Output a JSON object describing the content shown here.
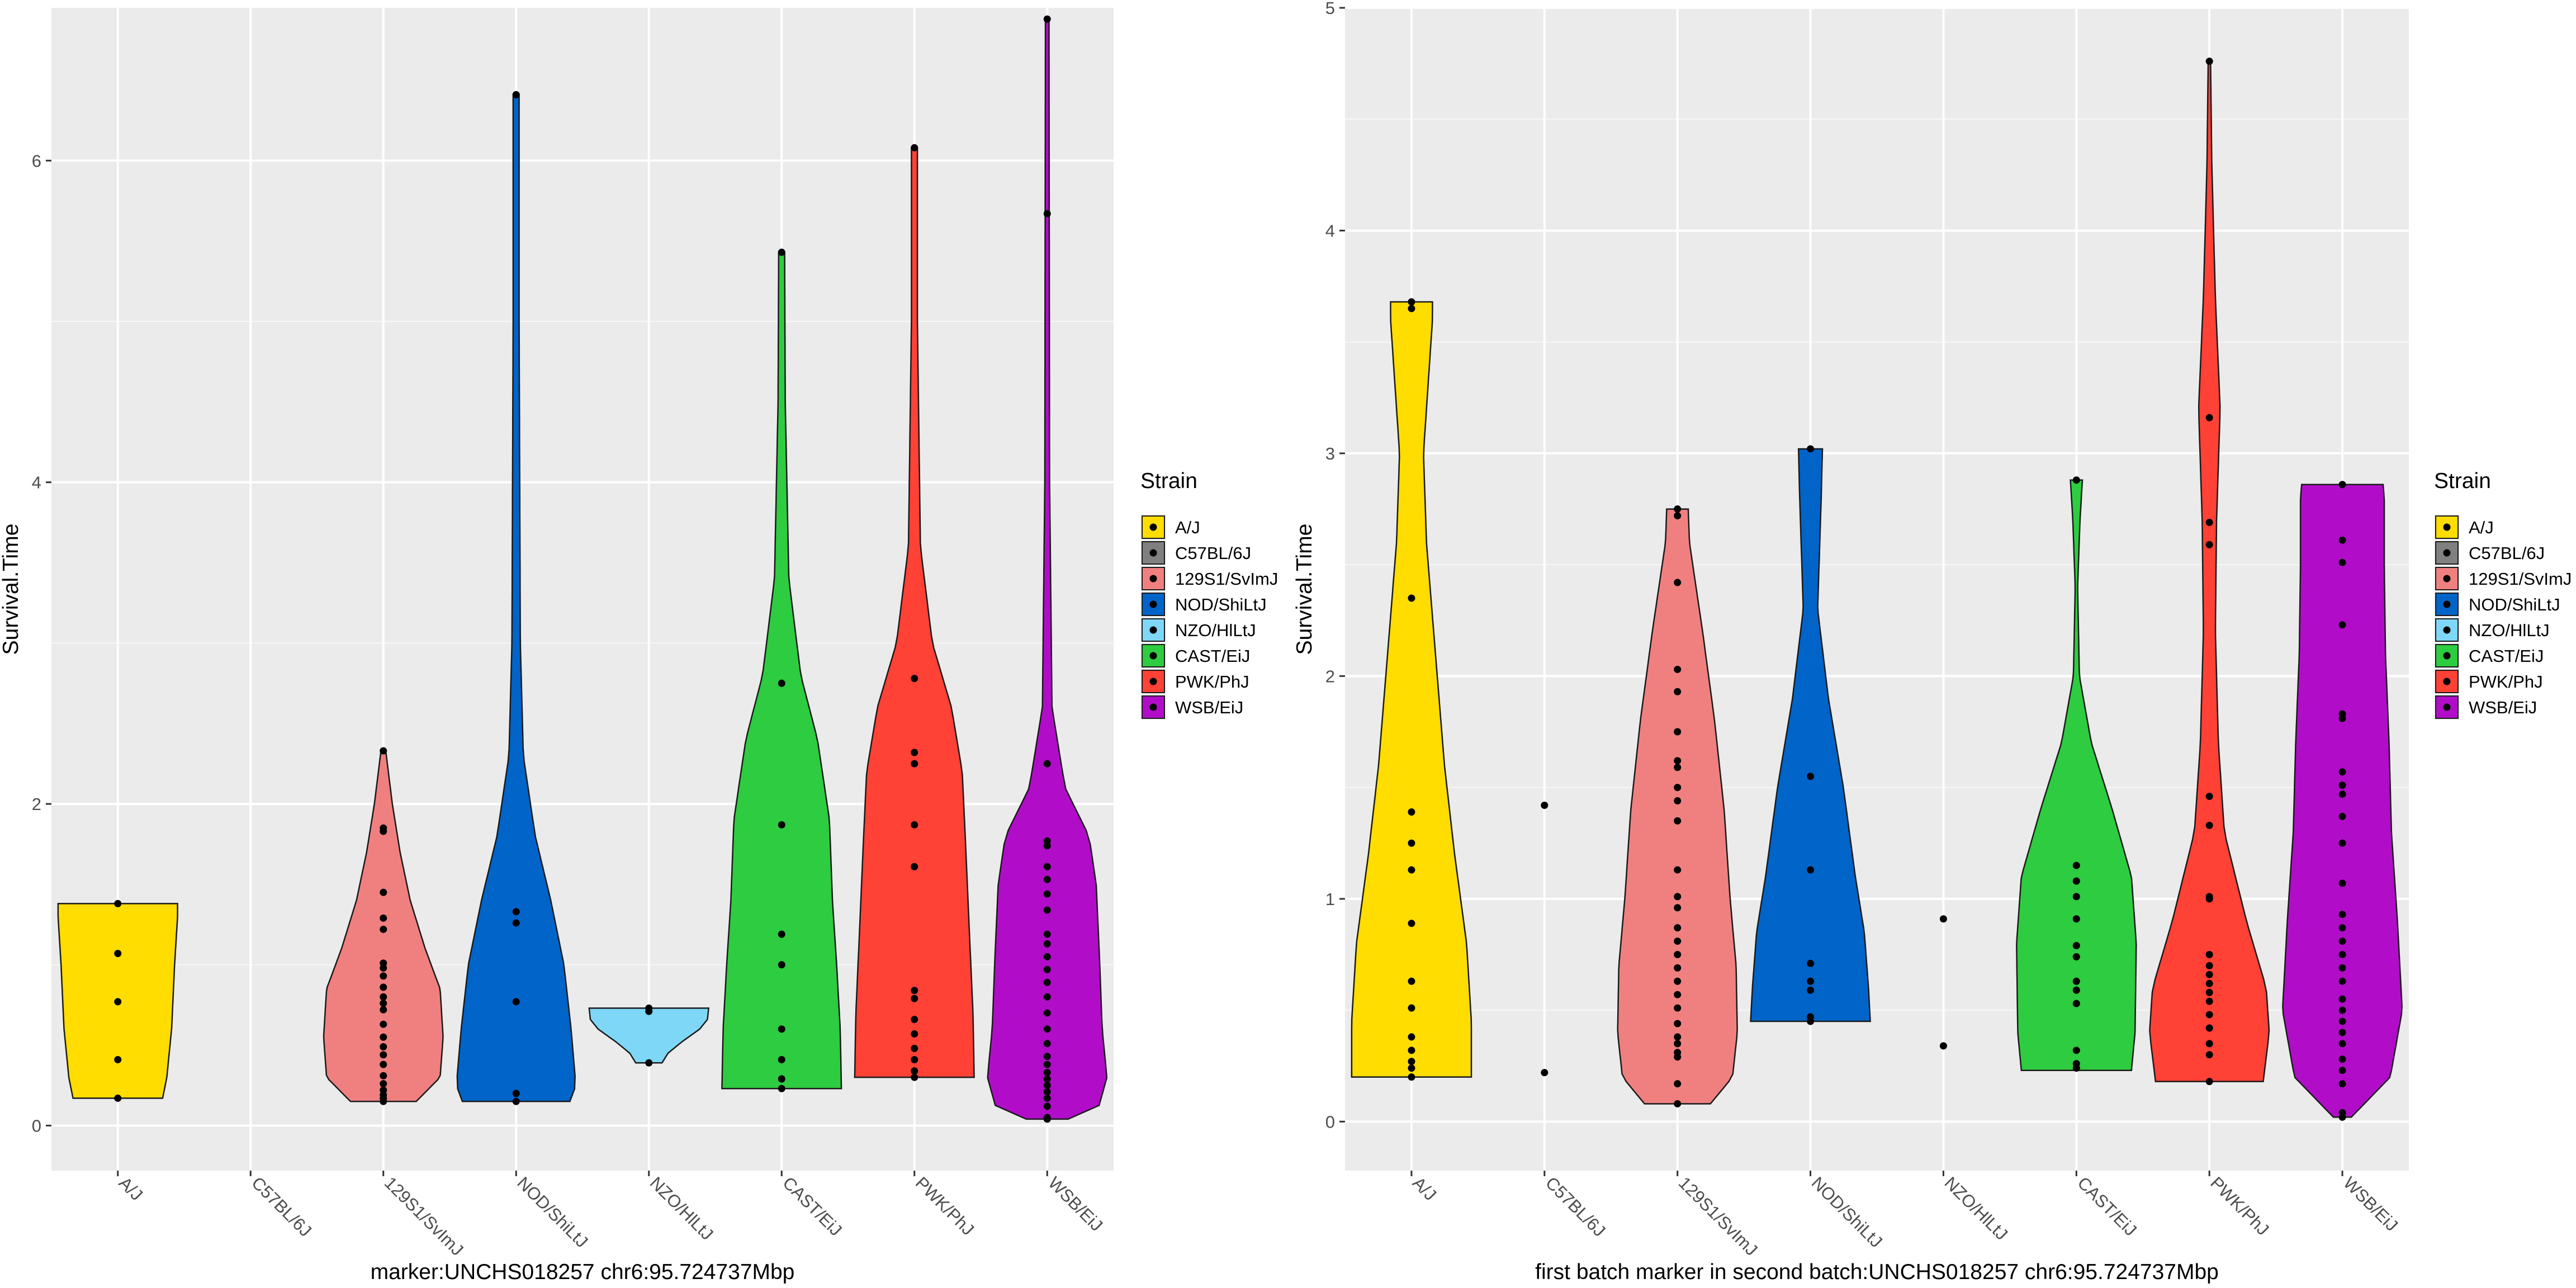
{
  "legend_title": "Strain",
  "colors": {
    "A/J": "#FFDD00",
    "C57BL/6J": "#808080",
    "129S1/SvImJ": "#F08080",
    "NOD/ShiLtJ": "#0064C9",
    "NZO/HlLtJ": "#7FD7F7",
    "CAST/EiJ": "#2ECC40",
    "PWK/PhJ": "#FF4136",
    "WSB/EiJ": "#B10DC9"
  },
  "chart_data": [
    {
      "type": "violin",
      "xlabel": "marker:UNCHS018257 chr6:95.724737Mbp",
      "ylabel": "Survival.Time",
      "categories": [
        "A/J",
        "C57BL/6J",
        "129S1/SvImJ",
        "NOD/ShiLtJ",
        "NZO/HlLtJ",
        "CAST/EiJ",
        "PWK/PhJ",
        "WSB/EiJ"
      ],
      "ylim": [
        -0.28,
        6.95
      ],
      "yticks": [
        0,
        2,
        4,
        6
      ],
      "grid": true,
      "legend_position": "right",
      "series": [
        {
          "name": "A/J",
          "range": [
            0.17,
            1.38
          ],
          "points": [
            1.38,
            1.07,
            0.77,
            0.41,
            0.17
          ],
          "shape": [
            [
              0.17,
              0.75
            ],
            [
              0.3,
              0.82
            ],
            [
              0.6,
              0.9
            ],
            [
              1.0,
              0.95
            ],
            [
              1.3,
              1.0
            ],
            [
              1.38,
              1.0
            ]
          ]
        },
        {
          "name": "C57BL/6J",
          "range": null,
          "points": [],
          "shape": []
        },
        {
          "name": "129S1/SvImJ",
          "range": [
            0.15,
            2.33
          ],
          "points": [
            2.33,
            1.85,
            1.83,
            1.45,
            1.29,
            1.22,
            1.01,
            0.98,
            0.93,
            0.86,
            0.8,
            0.76,
            0.72,
            0.63,
            0.55,
            0.49,
            0.44,
            0.38,
            0.31,
            0.26,
            0.22,
            0.19,
            0.17,
            0.15
          ],
          "shape": [
            [
              0.15,
              0.55
            ],
            [
              0.3,
              0.95
            ],
            [
              0.55,
              1.0
            ],
            [
              0.85,
              0.95
            ],
            [
              1.1,
              0.7
            ],
            [
              1.4,
              0.45
            ],
            [
              1.7,
              0.28
            ],
            [
              2.0,
              0.15
            ],
            [
              2.33,
              0.04
            ]
          ]
        },
        {
          "name": "NOD/ShiLtJ",
          "range": [
            0.15,
            6.41
          ],
          "points": [
            6.41,
            1.33,
            1.26,
            0.77,
            0.2,
            0.15
          ],
          "shape": [
            [
              0.15,
              0.9
            ],
            [
              0.25,
              1.0
            ],
            [
              0.6,
              0.92
            ],
            [
              1.0,
              0.8
            ],
            [
              1.4,
              0.58
            ],
            [
              1.8,
              0.32
            ],
            [
              2.3,
              0.12
            ],
            [
              3.0,
              0.07
            ],
            [
              5.0,
              0.05
            ],
            [
              6.41,
              0.05
            ]
          ]
        },
        {
          "name": "NZO/HlLtJ",
          "range": [
            0.39,
            0.73
          ],
          "points": [
            0.73,
            0.71,
            0.39
          ],
          "shape": [
            [
              0.39,
              0.22
            ],
            [
              0.45,
              0.32
            ],
            [
              0.52,
              0.55
            ],
            [
              0.6,
              0.85
            ],
            [
              0.66,
              0.98
            ],
            [
              0.73,
              1.0
            ]
          ]
        },
        {
          "name": "CAST/EiJ",
          "range": [
            0.23,
            5.43
          ],
          "points": [
            5.43,
            2.75,
            1.87,
            1.19,
            1.0,
            0.6,
            0.41,
            0.29,
            0.23
          ],
          "shape": [
            [
              0.23,
              1.0
            ],
            [
              0.6,
              0.98
            ],
            [
              1.0,
              0.92
            ],
            [
              1.4,
              0.85
            ],
            [
              1.9,
              0.8
            ],
            [
              2.4,
              0.6
            ],
            [
              2.8,
              0.32
            ],
            [
              3.4,
              0.12
            ],
            [
              4.5,
              0.06
            ],
            [
              5.43,
              0.05
            ]
          ]
        },
        {
          "name": "PWK/PhJ",
          "range": [
            0.3,
            6.08
          ],
          "points": [
            6.08,
            2.78,
            2.32,
            2.25,
            1.87,
            1.61,
            0.84,
            0.79,
            0.66,
            0.57,
            0.48,
            0.41,
            0.34,
            0.3
          ],
          "shape": [
            [
              0.3,
              1.0
            ],
            [
              0.7,
              0.98
            ],
            [
              1.2,
              0.92
            ],
            [
              1.8,
              0.85
            ],
            [
              2.2,
              0.8
            ],
            [
              2.6,
              0.62
            ],
            [
              3.0,
              0.3
            ],
            [
              3.6,
              0.1
            ],
            [
              5.0,
              0.05
            ],
            [
              6.08,
              0.05
            ]
          ]
        },
        {
          "name": "WSB/EiJ",
          "range": [
            0.04,
            6.88
          ],
          "points": [
            6.88,
            5.67,
            2.25,
            1.77,
            1.74,
            1.61,
            1.53,
            1.44,
            1.34,
            1.19,
            1.13,
            1.05,
            0.97,
            0.89,
            0.8,
            0.7,
            0.6,
            0.51,
            0.43,
            0.38,
            0.33,
            0.29,
            0.25,
            0.21,
            0.17,
            0.12,
            0.05,
            0.04
          ],
          "shape": [
            [
              0.04,
              0.35
            ],
            [
              0.1,
              0.85
            ],
            [
              0.3,
              1.0
            ],
            [
              0.6,
              0.92
            ],
            [
              1.0,
              0.88
            ],
            [
              1.5,
              0.82
            ],
            [
              1.8,
              0.7
            ],
            [
              2.1,
              0.3
            ],
            [
              2.6,
              0.08
            ],
            [
              4.0,
              0.04
            ],
            [
              6.88,
              0.03
            ]
          ]
        }
      ]
    },
    {
      "type": "violin",
      "xlabel": "first batch marker in second batch:UNCHS018257 chr6:95.724737Mbp",
      "ylabel": "Survival.Time",
      "categories": [
        "A/J",
        "C57BL/6J",
        "129S1/SvImJ",
        "NOD/ShiLtJ",
        "NZO/HlLtJ",
        "CAST/EiJ",
        "PWK/PhJ",
        "WSB/EiJ"
      ],
      "ylim": [
        -0.22,
        5.0
      ],
      "yticks": [
        0,
        1,
        2,
        3,
        4,
        5
      ],
      "grid": true,
      "legend_position": "right",
      "series": [
        {
          "name": "A/J",
          "range": [
            0.2,
            3.68
          ],
          "points": [
            3.68,
            3.65,
            2.35,
            1.39,
            1.25,
            1.13,
            0.89,
            0.63,
            0.51,
            0.38,
            0.32,
            0.27,
            0.24,
            0.2
          ],
          "shape": [
            [
              0.2,
              1.0
            ],
            [
              0.45,
              1.0
            ],
            [
              0.8,
              0.92
            ],
            [
              1.2,
              0.72
            ],
            [
              1.6,
              0.55
            ],
            [
              2.1,
              0.4
            ],
            [
              2.6,
              0.25
            ],
            [
              3.0,
              0.2
            ],
            [
              3.4,
              0.3
            ],
            [
              3.6,
              0.35
            ],
            [
              3.68,
              0.35
            ]
          ]
        },
        {
          "name": "C57BL/6J",
          "range": null,
          "points": [
            1.42,
            0.22
          ],
          "shape": []
        },
        {
          "name": "129S1/SvImJ",
          "range": [
            0.08,
            2.75
          ],
          "points": [
            2.75,
            2.72,
            2.42,
            2.03,
            1.93,
            1.75,
            1.62,
            1.59,
            1.5,
            1.44,
            1.35,
            1.13,
            1.01,
            0.96,
            0.87,
            0.81,
            0.75,
            0.69,
            0.63,
            0.57,
            0.51,
            0.44,
            0.38,
            0.35,
            0.31,
            0.29,
            0.17,
            0.08
          ],
          "shape": [
            [
              0.08,
              0.55
            ],
            [
              0.2,
              0.92
            ],
            [
              0.4,
              1.0
            ],
            [
              0.7,
              0.98
            ],
            [
              1.0,
              0.88
            ],
            [
              1.4,
              0.78
            ],
            [
              1.8,
              0.62
            ],
            [
              2.2,
              0.42
            ],
            [
              2.6,
              0.2
            ],
            [
              2.75,
              0.18
            ]
          ]
        },
        {
          "name": "NOD/ShiLtJ",
          "range": [
            0.45,
            3.02
          ],
          "points": [
            3.02,
            1.55,
            1.13,
            0.71,
            0.63,
            0.59,
            0.47,
            0.45
          ],
          "shape": [
            [
              0.45,
              1.0
            ],
            [
              0.6,
              0.97
            ],
            [
              0.85,
              0.9
            ],
            [
              1.1,
              0.75
            ],
            [
              1.5,
              0.55
            ],
            [
              1.9,
              0.3
            ],
            [
              2.3,
              0.12
            ],
            [
              2.8,
              0.18
            ],
            [
              3.02,
              0.2
            ]
          ]
        },
        {
          "name": "NZO/HlLtJ",
          "range": null,
          "points": [
            0.91,
            0.34
          ],
          "shape": []
        },
        {
          "name": "CAST/EiJ",
          "range": [
            0.23,
            2.88
          ],
          "points": [
            2.88,
            1.15,
            1.08,
            1.01,
            0.91,
            0.79,
            0.74,
            0.63,
            0.59,
            0.53,
            0.32,
            0.26,
            0.24
          ],
          "shape": [
            [
              0.23,
              0.92
            ],
            [
              0.4,
              0.98
            ],
            [
              0.8,
              1.0
            ],
            [
              1.1,
              0.92
            ],
            [
              1.4,
              0.6
            ],
            [
              1.7,
              0.25
            ],
            [
              2.0,
              0.05
            ],
            [
              2.4,
              0.02
            ],
            [
              2.7,
              0.06
            ],
            [
              2.88,
              0.1
            ]
          ]
        },
        {
          "name": "PWK/PhJ",
          "range": [
            0.18,
            4.76
          ],
          "points": [
            4.76,
            3.16,
            2.69,
            2.59,
            1.46,
            1.33,
            1.01,
            1.0,
            0.75,
            0.7,
            0.66,
            0.62,
            0.58,
            0.54,
            0.48,
            0.42,
            0.35,
            0.3,
            0.18
          ],
          "shape": [
            [
              0.18,
              0.9
            ],
            [
              0.4,
              1.0
            ],
            [
              0.6,
              0.95
            ],
            [
              0.9,
              0.62
            ],
            [
              1.3,
              0.25
            ],
            [
              1.7,
              0.15
            ],
            [
              2.2,
              0.1
            ],
            [
              2.7,
              0.12
            ],
            [
              3.2,
              0.18
            ],
            [
              3.7,
              0.1
            ],
            [
              4.3,
              0.04
            ],
            [
              4.76,
              0.02
            ]
          ]
        },
        {
          "name": "WSB/EiJ",
          "range": [
            0.02,
            2.86
          ],
          "points": [
            2.86,
            2.61,
            2.51,
            2.23,
            1.83,
            1.81,
            1.57,
            1.51,
            1.47,
            1.37,
            1.25,
            1.07,
            0.93,
            0.87,
            0.81,
            0.75,
            0.69,
            0.63,
            0.55,
            0.5,
            0.45,
            0.4,
            0.35,
            0.28,
            0.23,
            0.17,
            0.04,
            0.02
          ],
          "shape": [
            [
              0.02,
              0.15
            ],
            [
              0.2,
              0.8
            ],
            [
              0.5,
              1.0
            ],
            [
              0.9,
              0.92
            ],
            [
              1.3,
              0.82
            ],
            [
              1.7,
              0.78
            ],
            [
              2.1,
              0.72
            ],
            [
              2.5,
              0.7
            ],
            [
              2.8,
              0.7
            ],
            [
              2.86,
              0.68
            ]
          ]
        }
      ]
    }
  ]
}
